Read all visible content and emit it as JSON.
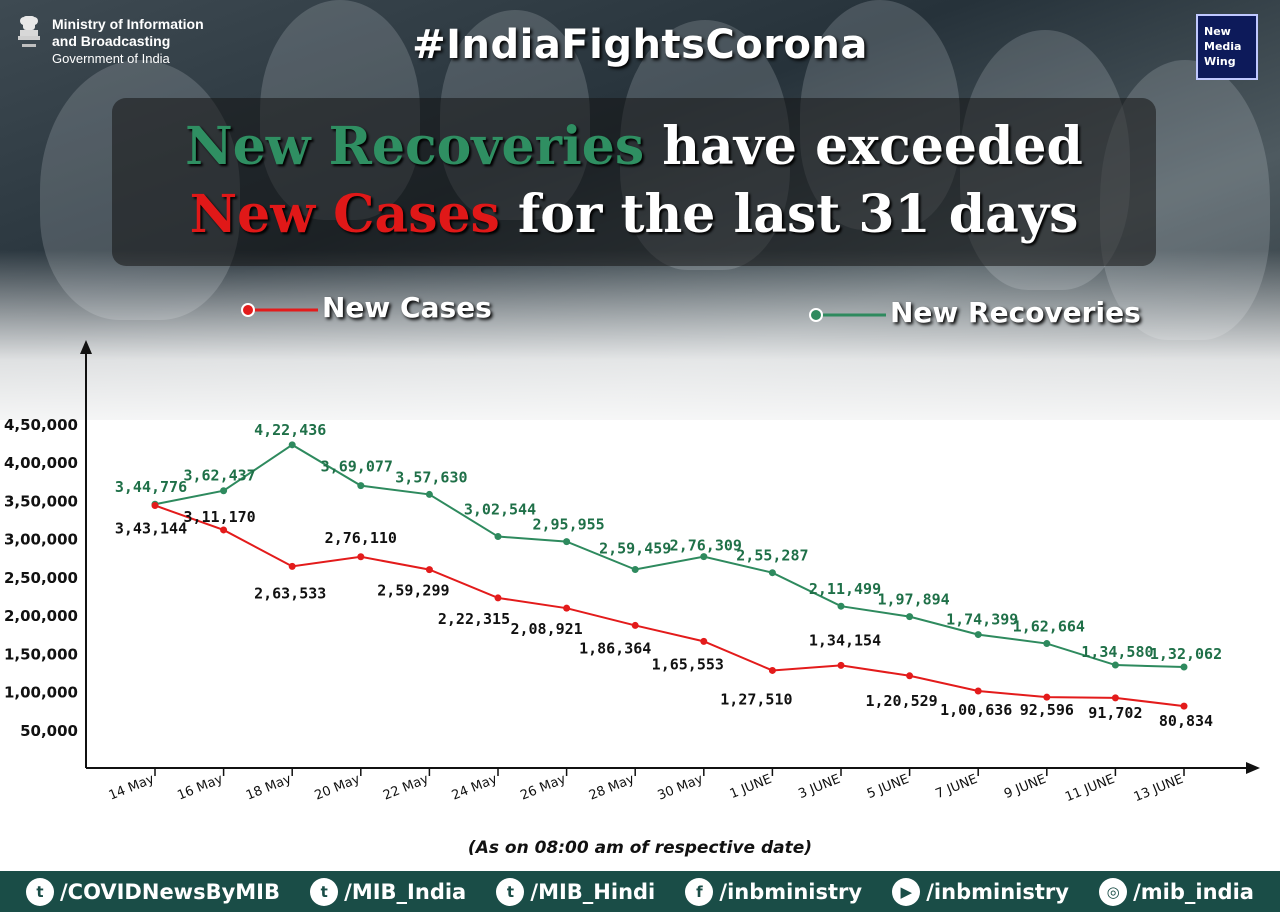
{
  "header": {
    "ministry_line1": "Ministry of Information",
    "ministry_line2": "and Broadcasting",
    "ministry_line3": "Government of India",
    "hashtag": "#IndiaFightsCorona",
    "logo_lines": [
      "New",
      "Media",
      "Wing"
    ]
  },
  "headline": {
    "line1_highlight": "New Recoveries",
    "line1_rest": " have exceeded",
    "line2_highlight": "New Cases",
    "line2_rest": " for the last 31 days"
  },
  "colors": {
    "recoveries": "#2e8a5e",
    "cases": "#e31b1b",
    "recoveries_label": "#1f7048",
    "footer": "#1a4d47"
  },
  "chart_data": {
    "type": "line",
    "x": [
      "14 May",
      "16 May",
      "18 May",
      "20 May",
      "22 May",
      "24 May",
      "26 May",
      "28 May",
      "30 May",
      "1 JUNE",
      "3 JUNE",
      "5 JUNE",
      "7 JUNE",
      "9 JUNE",
      "11 JUNE",
      "13 JUNE"
    ],
    "series": [
      {
        "name": "New Cases",
        "values": [
          343144,
          311170,
          263533,
          276110,
          259299,
          222315,
          208921,
          186364,
          165553,
          127510,
          134154,
          120529,
          100636,
          92596,
          91702,
          80834
        ],
        "labels": [
          "3,43,144",
          "3,11,170",
          "2,63,533",
          "2,76,110",
          "2,59,299",
          "2,22,315",
          "2,08,921",
          "1,86,364",
          "1,65,553",
          "1,27,510",
          "1,34,154",
          "1,20,529",
          "1,00,636",
          "92,596",
          "91,702",
          "80,834"
        ]
      },
      {
        "name": "New Recoveries",
        "values": [
          344776,
          362437,
          422436,
          369077,
          357630,
          302544,
          295955,
          259459,
          276309,
          255287,
          211499,
          197894,
          174399,
          162664,
          134580,
          132062
        ],
        "labels": [
          "3,44,776",
          "3,62,437",
          "4,22,436",
          "3,69,077",
          "3,57,630",
          "3,02,544",
          "2,95,955",
          "2,59,459",
          "2,76,309",
          "2,55,287",
          "2,11,499",
          "1,97,894",
          "1,74,399",
          "1,62,664",
          "1,34,580",
          "1,32,062"
        ]
      }
    ],
    "yticks": [
      "4,50,000",
      "4,00,000",
      "3,50,000",
      "3,00,000",
      "2,50,000",
      "2,00,000",
      "1,50,000",
      "1,00,000",
      "50,000"
    ],
    "ytick_values": [
      450000,
      400000,
      350000,
      300000,
      250000,
      200000,
      150000,
      100000,
      50000
    ],
    "legend_placement": "top",
    "grid": false
  },
  "note": "(As on 08:00 am of respective date)",
  "footer": {
    "handles": [
      {
        "icon": "twitter-icon",
        "text": "/COVIDNewsByMIB"
      },
      {
        "icon": "twitter-icon",
        "text": "/MIB_India"
      },
      {
        "icon": "twitter-icon",
        "text": "/MIB_Hindi"
      },
      {
        "icon": "facebook-icon",
        "text": "/inbministry"
      },
      {
        "icon": "youtube-icon",
        "text": "/inbministry"
      },
      {
        "icon": "instagram-icon",
        "text": "/mib_india"
      }
    ]
  }
}
